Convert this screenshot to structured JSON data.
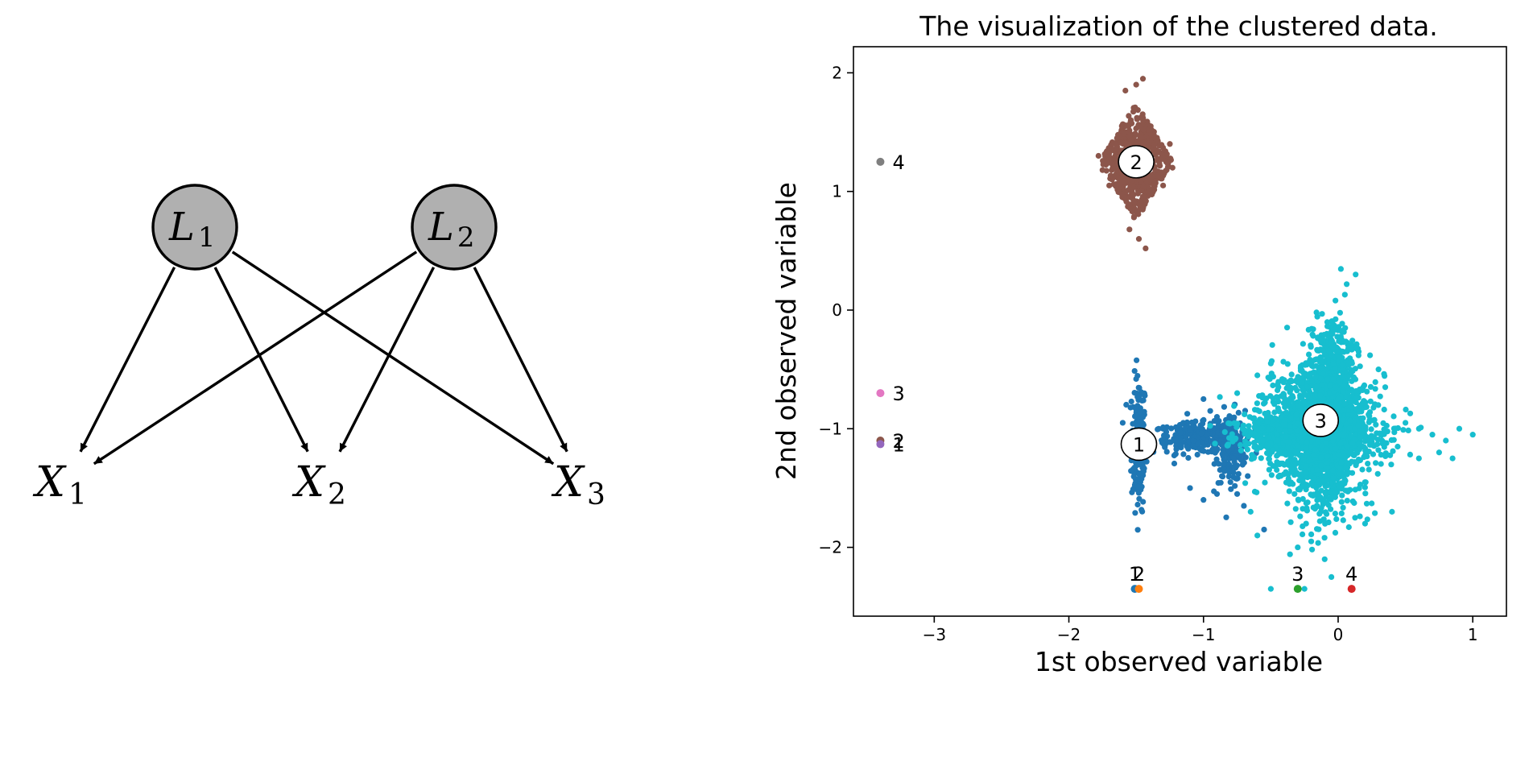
{
  "diagram": {
    "latent_nodes": [
      {
        "id": "L1",
        "symbol": "L",
        "subscript": "1"
      },
      {
        "id": "L2",
        "symbol": "L",
        "subscript": "2"
      }
    ],
    "observed_nodes": [
      {
        "id": "X1",
        "symbol": "X",
        "subscript": "1"
      },
      {
        "id": "X2",
        "symbol": "X",
        "subscript": "2"
      },
      {
        "id": "X3",
        "symbol": "X",
        "subscript": "3"
      }
    ],
    "edges": [
      {
        "from": "L1",
        "to": "X1"
      },
      {
        "from": "L1",
        "to": "X2"
      },
      {
        "from": "L1",
        "to": "X3"
      },
      {
        "from": "L2",
        "to": "X1"
      },
      {
        "from": "L2",
        "to": "X2"
      },
      {
        "from": "L2",
        "to": "X3"
      }
    ],
    "colors": {
      "latent_fill": "#b0b0b0",
      "stroke": "#000000"
    }
  },
  "chart_data": {
    "type": "scatter",
    "title": "The visualization of the clustered data.",
    "xlabel": "1st observed variable",
    "ylabel": "2nd observed variable",
    "xlim": [
      -3.6,
      1.25
    ],
    "ylim": [
      -2.58,
      2.22
    ],
    "xticks": [
      -3,
      -2,
      -1,
      0,
      1
    ],
    "yticks": [
      -2,
      -1,
      0,
      1,
      2
    ],
    "grid": false,
    "clusters": [
      {
        "label": "1",
        "color": "#1f77b4",
        "center": [
          -1.48,
          -1.13
        ],
        "point_blobs": [
          {
            "cx": -1.48,
            "cy": -1.12,
            "rx": 0.06,
            "ry": 0.62
          },
          {
            "cx": -1.05,
            "cy": -1.08,
            "rx": 0.36,
            "ry": 0.14
          },
          {
            "cx": -0.8,
            "cy": -1.15,
            "rx": 0.12,
            "ry": 0.33
          }
        ],
        "scattered": [
          [
            -1.4,
            -1.05
          ],
          [
            -1.3,
            -1.0
          ],
          [
            -1.2,
            -1.1
          ],
          [
            -1.15,
            -0.95
          ],
          [
            -1.0,
            -0.75
          ],
          [
            -0.95,
            -0.85
          ],
          [
            -1.1,
            -1.5
          ],
          [
            -1.0,
            -1.6
          ],
          [
            -0.9,
            -1.55
          ],
          [
            -0.75,
            -1.55
          ],
          [
            -0.7,
            -1.65
          ],
          [
            -0.8,
            -1.45
          ],
          [
            -0.9,
            -0.9
          ],
          [
            -0.85,
            -1.3
          ],
          [
            -1.6,
            -0.95
          ],
          [
            -0.55,
            -1.85
          ]
        ]
      },
      {
        "label": "2",
        "color": "#8c564b",
        "center": [
          -1.5,
          1.25
        ],
        "point_blobs": [
          {
            "cx": -1.5,
            "cy": 1.25,
            "rx": 0.27,
            "ry": 0.5,
            "shape": "diamond"
          }
        ],
        "scattered": [
          [
            -1.5,
            1.9
          ],
          [
            -1.45,
            1.95
          ],
          [
            -1.58,
            1.85
          ],
          [
            -1.43,
            0.52
          ],
          [
            -1.48,
            0.6
          ],
          [
            -1.55,
            0.68
          ],
          [
            -1.25,
            1.4
          ],
          [
            -1.23,
            1.2
          ],
          [
            -1.78,
            1.3
          ],
          [
            -1.75,
            1.18
          ],
          [
            -1.3,
            1.05
          ],
          [
            -1.7,
            1.05
          ]
        ]
      },
      {
        "label": "3",
        "color": "#17becf",
        "center": [
          -0.13,
          -0.93
        ],
        "point_blobs": [
          {
            "cx": -0.2,
            "cy": -1.0,
            "rx": 0.48,
            "ry": 0.5
          },
          {
            "cx": -0.05,
            "cy": -0.6,
            "rx": 0.18,
            "ry": 0.55
          },
          {
            "cx": -0.2,
            "cy": -1.05,
            "rx": 0.6,
            "ry": 0.18
          },
          {
            "cx": -0.1,
            "cy": -1.1,
            "rx": 0.3,
            "ry": 0.75
          }
        ],
        "scattered": [
          [
            0.13,
            0.3
          ],
          [
            0.05,
            0.13
          ],
          [
            -0.02,
            0.08
          ],
          [
            0.5,
            -0.95
          ],
          [
            0.6,
            -1.0
          ],
          [
            0.7,
            -1.05
          ],
          [
            0.8,
            -1.1
          ],
          [
            0.9,
            -1.0
          ],
          [
            1.0,
            -1.05
          ],
          [
            0.85,
            -1.25
          ],
          [
            0.75,
            -1.2
          ],
          [
            0.6,
            -1.25
          ],
          [
            -0.2,
            -1.95
          ],
          [
            -0.3,
            -2.0
          ],
          [
            -0.1,
            -2.1
          ],
          [
            -0.5,
            -2.35
          ],
          [
            -0.25,
            -2.35
          ],
          [
            -0.6,
            -1.9
          ],
          [
            -0.65,
            -1.7
          ],
          [
            0.3,
            -0.5
          ],
          [
            0.35,
            -0.65
          ],
          [
            -0.6,
            -0.55
          ],
          [
            -0.5,
            -0.45
          ],
          [
            -0.75,
            -0.7
          ],
          [
            0.4,
            -1.7
          ],
          [
            0.2,
            -1.8
          ],
          [
            -0.05,
            -2.25
          ]
        ]
      }
    ],
    "mean_circles": [
      {
        "label": "1",
        "x": -1.48,
        "y": -1.13
      },
      {
        "label": "2",
        "x": -1.5,
        "y": 1.25
      },
      {
        "label": "3",
        "x": -0.13,
        "y": -0.93
      }
    ],
    "left_markers": [
      {
        "label": "4",
        "x": -3.4,
        "y": 1.25,
        "color": "#7f7f7f"
      },
      {
        "label": "3",
        "x": -3.4,
        "y": -0.7,
        "color": "#e377c2"
      },
      {
        "label": "2",
        "x": -3.4,
        "y": -1.1,
        "color": "#8c564b"
      },
      {
        "label": "1",
        "x": -3.4,
        "y": -1.13,
        "color": "#9467bd"
      }
    ],
    "bottom_markers": [
      {
        "label": "1",
        "x": -1.51,
        "y": -2.35,
        "color": "#1f77b4"
      },
      {
        "label": "2",
        "x": -1.48,
        "y": -2.35,
        "color": "#ff7f0e"
      },
      {
        "label": "3",
        "x": -0.3,
        "y": -2.35,
        "color": "#2ca02c"
      },
      {
        "label": "4",
        "x": 0.1,
        "y": -2.35,
        "color": "#d62728"
      }
    ]
  }
}
